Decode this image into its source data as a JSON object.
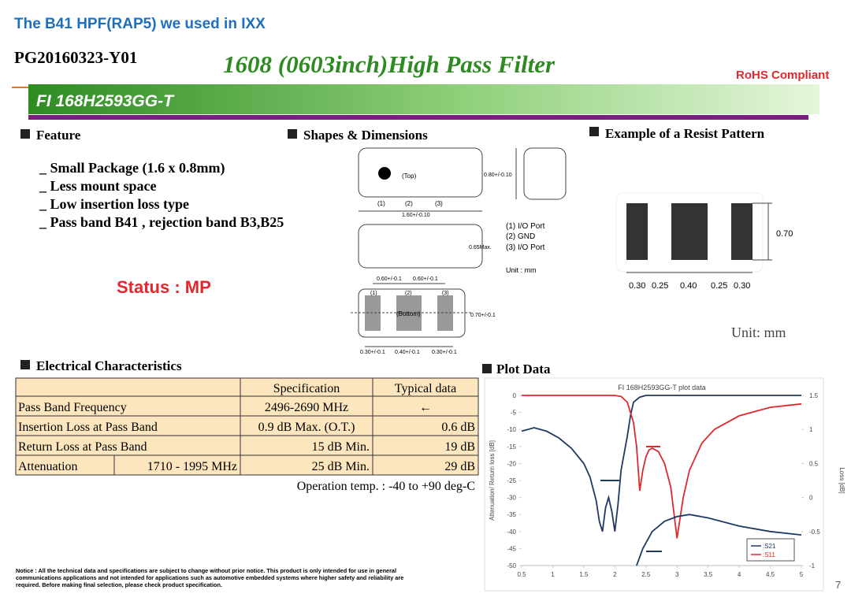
{
  "header": {
    "title": "The B41 HPF(RAP5) we used in IXX",
    "doc_no": "PG20160323-Y01",
    "product_title": "1608 (0603inch)High Pass Filter",
    "rohs": "RoHS Compliant",
    "part_no": "FI 168H2593GG-T"
  },
  "feature": {
    "heading": "Feature",
    "items": [
      "_ Small Package (1.6 x 0.8mm)",
      "_ Less mount space",
      "_ Low insertion loss type",
      "_ Pass band B41 , rejection band B3,B25"
    ],
    "status": "Status : MP"
  },
  "shapes": {
    "heading": "Shapes & Dimensions",
    "top_label": "(Top)",
    "top_pins": [
      "(1)",
      "(2)",
      "(3)"
    ],
    "width": "0.80+/-0.10",
    "length": "1.60+/-0.10",
    "height": "0.65Max.",
    "pin_legend": [
      "(1) I/O Port",
      "(2) GND",
      "(3) I/O Port"
    ],
    "unit": "Unit : mm",
    "pad_pitch": [
      "0.60+/-0.1",
      "0.60+/-0.1"
    ],
    "bottom_pins": [
      "(1)",
      "(2)",
      "(3)"
    ],
    "bottom_label": "(Bottom)",
    "pad_height": "0.70+/-0.1",
    "pad_widths": [
      "0.30+/-0.1",
      "0.40+/-0.1",
      "0.30+/-0.1"
    ]
  },
  "resist": {
    "heading": "Example of  a Resist Pattern",
    "height": "0.70",
    "widths": [
      "0.30",
      "0.25",
      "0.40",
      "0.25",
      "0.30"
    ],
    "unit": "Unit: mm"
  },
  "electrical": {
    "heading": "Electrical Characteristics",
    "columns": [
      "Specification",
      "Typical data"
    ],
    "rows": [
      [
        "Pass Band Frequency",
        "2496-2690 MHz",
        "←"
      ],
      [
        "Insertion Loss at Pass Band",
        "0.9 dB Max. (O.T.)",
        "0.6 dB"
      ],
      [
        "Return Loss at Pass Band",
        "15 dB Min.",
        "19 dB"
      ],
      [
        "Attenuation",
        "1710 - 1995 MHz",
        "25 dB Min.",
        "29 dB"
      ]
    ],
    "note": "Operation temp. : -40 to +90 deg-C"
  },
  "plot": {
    "heading": "Plot Data",
    "type": "line",
    "title": "FI 168H2593GG-T plot data",
    "y_label": "Attenuation/ Return loss [dB]",
    "y2_label": "Loss [dB]",
    "grid": false,
    "xlim": [
      0.5,
      5
    ],
    "xticks": [
      0.5,
      1,
      1.5,
      2,
      2.5,
      3,
      3.5,
      4,
      4.5,
      5
    ],
    "ylim": [
      -50,
      0
    ],
    "yticks": [
      0,
      -5,
      -10,
      -15,
      -20,
      -25,
      -30,
      -35,
      -40,
      -45,
      -50
    ],
    "y2lim": [
      -1,
      1.5
    ],
    "y2ticks": [
      1.5,
      1,
      0.5,
      0,
      -0.5,
      -1
    ],
    "series": [
      {
        "name": ":S21",
        "color": "#1f3864",
        "x": [
          0.5,
          0.7,
          0.9,
          1.1,
          1.3,
          1.5,
          1.6,
          1.7,
          1.75,
          1.8,
          1.85,
          1.9,
          1.95,
          2.0,
          2.05,
          2.1,
          2.2,
          2.25,
          2.3,
          2.4,
          2.5,
          3,
          4,
          5
        ],
        "values": [
          -10.5,
          -9.5,
          -10.5,
          -12.5,
          -15.5,
          -20,
          -24,
          -31,
          -37,
          -40,
          -33,
          -30,
          -34,
          -40,
          -32,
          -22,
          -12,
          -6,
          -2,
          -0.5,
          0,
          0,
          0,
          0
        ]
      },
      {
        "name": ":S11",
        "color": "#e0282e",
        "x": [
          0.5,
          1,
          1.5,
          2,
          2.1,
          2.2,
          2.3,
          2.35,
          2.4,
          2.45,
          2.5,
          2.55,
          2.6,
          2.7,
          2.8,
          2.9,
          3.0,
          3.1,
          3.2,
          3.4,
          3.6,
          4,
          4.5,
          5
        ],
        "values": [
          0,
          0,
          0,
          0,
          -0.3,
          -2,
          -8,
          -15,
          -28,
          -22,
          -18,
          -16,
          -15.5,
          -16.5,
          -20,
          -27,
          -42,
          -30,
          -22,
          -14,
          -10,
          -6,
          -3.5,
          -2.5
        ]
      },
      {
        "color": "#1f3864",
        "axis": "y2",
        "x": [
          2.35,
          2.45,
          2.6,
          2.8,
          3.0,
          3.2,
          3.5,
          4.0,
          4.5,
          5.0
        ],
        "values": [
          -1,
          -0.75,
          -0.5,
          -0.35,
          -0.28,
          -0.25,
          -0.3,
          -0.42,
          -0.5,
          -0.55
        ]
      }
    ]
  },
  "notice": [
    "Notice : All the technical data and specifications are subject to change without prior notice.  This product is only intended for use in general",
    "communications applications and not intended for applications such as automotive embedded systems where higher safety and reliability are",
    "required.  Before making final selection, please check product specification."
  ],
  "page": "7"
}
